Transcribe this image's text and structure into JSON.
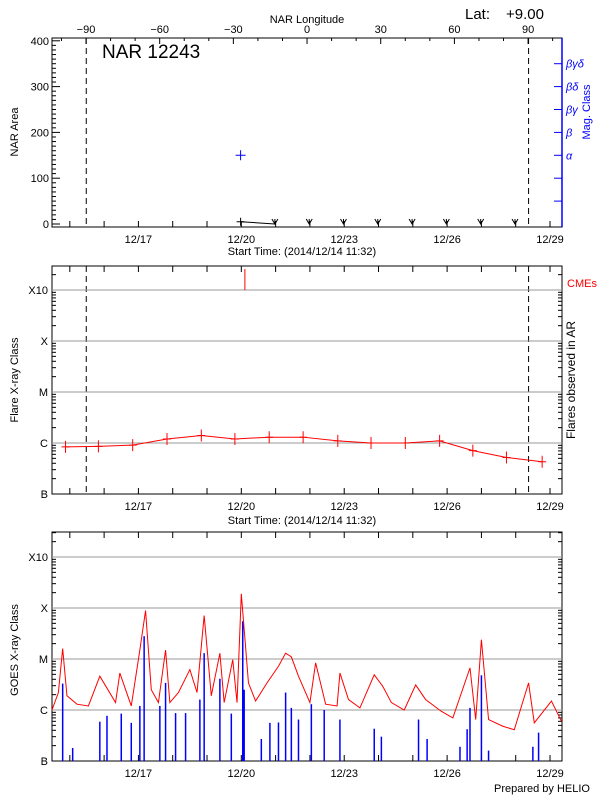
{
  "header": {
    "lat_label": "Lat:",
    "lat_value": "+9.00",
    "region_title": "NAR 12243",
    "credit": "Prepared by HELIO"
  },
  "colors": {
    "flare": "#ff0000",
    "goes_long": "#ff0000",
    "goes_short": "#0000ff",
    "mag_class": "#0000ff",
    "cme": "#ff0000",
    "grid": "#999999",
    "axis": "#000000"
  },
  "chart_data": [
    {
      "id": "nar-area",
      "type": "scatter",
      "xlabel": "Start Time: (2014/12/14 11:32)",
      "ylabel": "NAR Area",
      "y2label": "Mag. Class",
      "top_axis_label": "NAR Longitude",
      "x_range": [
        "12/14 11:32",
        "12/29 08:30"
      ],
      "x_tick_labels": [
        "12/17",
        "12/20",
        "12/23",
        "12/26",
        "12/29"
      ],
      "ylim": [
        0,
        400
      ],
      "y_tick_labels": [
        "0",
        "100",
        "200",
        "300",
        "400"
      ],
      "top_axis_ticks": [
        -90,
        -60,
        -30,
        0,
        30,
        60,
        90
      ],
      "limb_lines": [
        {
          "longitude": -90,
          "time": "12/15 11:30"
        },
        {
          "longitude": 90,
          "time": "12/28 09:00"
        }
      ],
      "mag_class_ticks": [
        "α",
        "β",
        "βγ",
        "βδ",
        "βγδ"
      ],
      "area": [
        {
          "t": "12/19 23:30",
          "v": 5
        },
        {
          "t": "12/20 23:30",
          "v": 0
        },
        {
          "t": "12/21 23:30",
          "v": 0
        },
        {
          "t": "12/22 23:30",
          "v": 0
        },
        {
          "t": "12/23 23:30",
          "v": 0
        },
        {
          "t": "12/24 23:30",
          "v": 0
        },
        {
          "t": "12/25 23:30",
          "v": 0
        },
        {
          "t": "12/26 23:30",
          "v": 0
        },
        {
          "t": "12/27 23:30",
          "v": 0
        }
      ],
      "mag_class": [
        {
          "t": "12/19 23:30",
          "v": "α"
        }
      ]
    },
    {
      "id": "flare-class",
      "type": "line",
      "xlabel": "Start Time: (2014/12/14 11:32)",
      "ylabel": "Flare X-ray Class",
      "y2label": "Flares observed in AR",
      "cme_label": "CMEs",
      "y_scale": "log",
      "ylim": [
        "B1",
        "X30"
      ],
      "y_tick_labels": [
        "B",
        "C",
        "M",
        "X",
        "X10"
      ],
      "grid": true,
      "x_tick_labels": [
        "12/17",
        "12/20",
        "12/23",
        "12/26",
        "12/29"
      ],
      "cmes": [
        "12/20 02:30"
      ],
      "points": [
        {
          "t": "12/14 21:00",
          "v": "B8.4"
        },
        {
          "t": "12/15 20:00",
          "v": "B8.6"
        },
        {
          "t": "12/16 20:00",
          "v": "B9.1"
        },
        {
          "t": "12/17 20:00",
          "v": "C1.2"
        },
        {
          "t": "12/18 20:00",
          "v": "C1.4"
        },
        {
          "t": "12/19 19:30",
          "v": "C1.2"
        },
        {
          "t": "12/20 19:30",
          "v": "C1.3"
        },
        {
          "t": "12/21 19:15",
          "v": "C1.3"
        },
        {
          "t": "12/22 19:30",
          "v": "C1.1"
        },
        {
          "t": "12/23 18:45",
          "v": "C1.0"
        },
        {
          "t": "12/24 18:45",
          "v": "C1.0"
        },
        {
          "t": "12/25 18:45",
          "v": "C1.1"
        },
        {
          "t": "12/26 18:00",
          "v": "B7.1"
        },
        {
          "t": "12/27 17:30",
          "v": "B5.2"
        },
        {
          "t": "12/28 18:30",
          "v": "B4.3"
        }
      ]
    },
    {
      "id": "goes-xray",
      "type": "line",
      "ylabel": "GOES X-ray Class",
      "y_scale": "log",
      "ylim": [
        "B1",
        "X30"
      ],
      "y_tick_labels": [
        "B",
        "C",
        "M",
        "X",
        "X10"
      ],
      "grid": true,
      "x_tick_labels": [
        "12/17",
        "12/20",
        "12/23",
        "12/26",
        "12/29"
      ],
      "long_channel": [
        {
          "t": "12/14 11:32",
          "v": "C1.0"
        },
        {
          "t": "12/14 16:00",
          "v": "C2.2"
        },
        {
          "t": "12/14 19:00",
          "v": "M1.6"
        },
        {
          "t": "12/14 22:00",
          "v": "C1.9"
        },
        {
          "t": "12/15 05:00",
          "v": "C1.3"
        },
        {
          "t": "12/15 13:00",
          "v": "C1.2"
        },
        {
          "t": "12/15 21:00",
          "v": "C4.6"
        },
        {
          "t": "12/16 08:00",
          "v": "C1.4"
        },
        {
          "t": "12/16 11:00",
          "v": "C5.3"
        },
        {
          "t": "12/16 19:00",
          "v": "C1.2"
        },
        {
          "t": "12/17 01:00",
          "v": "M1.5"
        },
        {
          "t": "12/17 05:00",
          "v": "M8.9"
        },
        {
          "t": "12/17 09:00",
          "v": "C2.5"
        },
        {
          "t": "12/17 14:00",
          "v": "C1.4"
        },
        {
          "t": "12/17 19:00",
          "v": "M1.5"
        },
        {
          "t": "12/17 22:00",
          "v": "C1.4"
        },
        {
          "t": "12/18 04:00",
          "v": "C2.2"
        },
        {
          "t": "12/18 12:00",
          "v": "C6.2"
        },
        {
          "t": "12/18 17:00",
          "v": "C2.2"
        },
        {
          "t": "12/18 22:00",
          "v": "M7.1"
        },
        {
          "t": "12/19 03:00",
          "v": "C1.9"
        },
        {
          "t": "12/19 09:00",
          "v": "M1.3"
        },
        {
          "t": "12/19 12:00",
          "v": "C1.4"
        },
        {
          "t": "12/19 18:00",
          "v": "C9.7"
        },
        {
          "t": "12/19 21:00",
          "v": "C1.4"
        },
        {
          "t": "12/20 00:00",
          "v": "X1.9"
        },
        {
          "t": "12/20 05:00",
          "v": "C3.4"
        },
        {
          "t": "12/20 10:00",
          "v": "C1.5"
        },
        {
          "t": "12/20 18:00",
          "v": "C3.4"
        },
        {
          "t": "12/21 02:00",
          "v": "C7.2"
        },
        {
          "t": "12/21 07:00",
          "v": "M1.3"
        },
        {
          "t": "12/21 11:00",
          "v": "M1.1"
        },
        {
          "t": "12/21 16:00",
          "v": "C4.6"
        },
        {
          "t": "12/22 00:00",
          "v": "C1.4"
        },
        {
          "t": "12/22 04:00",
          "v": "C8.4"
        },
        {
          "t": "12/22 11:00",
          "v": "C1.3"
        },
        {
          "t": "12/22 19:00",
          "v": "C1.2"
        },
        {
          "t": "12/22 21:00",
          "v": "C5.3"
        },
        {
          "t": "12/23 03:00",
          "v": "C1.6"
        },
        {
          "t": "12/23 11:00",
          "v": "C1.1"
        },
        {
          "t": "12/23 21:00",
          "v": "C4.9"
        },
        {
          "t": "12/24 03:00",
          "v": "C2.9"
        },
        {
          "t": "12/24 09:00",
          "v": "C1.4"
        },
        {
          "t": "12/24 18:00",
          "v": "C1.0"
        },
        {
          "t": "12/25 02:00",
          "v": "C3.1"
        },
        {
          "t": "12/25 09:00",
          "v": "C1.6"
        },
        {
          "t": "12/25 20:00",
          "v": "B9.4"
        },
        {
          "t": "12/26 04:00",
          "v": "B7.0"
        },
        {
          "t": "12/26 16:00",
          "v": "C6.7"
        },
        {
          "t": "12/26 20:00",
          "v": "B6.5"
        },
        {
          "t": "12/27 00:00",
          "v": "M2.4"
        },
        {
          "t": "12/27 05:00",
          "v": "B6.5"
        },
        {
          "t": "12/27 15:00",
          "v": "B4.8"
        },
        {
          "t": "12/27 23:00",
          "v": "B4.1"
        },
        {
          "t": "12/28 09:00",
          "v": "C3.4"
        },
        {
          "t": "12/28 13:00",
          "v": "B5.6"
        },
        {
          "t": "12/29 01:00",
          "v": "C1.5"
        },
        {
          "t": "12/29 08:00",
          "v": "B6.0"
        }
      ],
      "short_channel": [
        {
          "t": "12/14 19:00",
          "v": "C3.3"
        },
        {
          "t": "12/15 02:00",
          "v": "B1.8"
        },
        {
          "t": "12/15 21:00",
          "v": "B5.9"
        },
        {
          "t": "12/16 02:00",
          "v": "B7.7"
        },
        {
          "t": "12/16 12:00",
          "v": "B8.5"
        },
        {
          "t": "12/16 19:00",
          "v": "B5.6"
        },
        {
          "t": "12/17 01:00",
          "v": "C1.2"
        },
        {
          "t": "12/17 04:00",
          "v": "M2.8"
        },
        {
          "t": "12/17 15:00",
          "v": "C1.2"
        },
        {
          "t": "12/17 19:00",
          "v": "C3.4"
        },
        {
          "t": "12/18 02:00",
          "v": "B8.7"
        },
        {
          "t": "12/18 09:00",
          "v": "B8.7"
        },
        {
          "t": "12/18 19:00",
          "v": "C1.6"
        },
        {
          "t": "12/18 22:00",
          "v": "M1.3"
        },
        {
          "t": "12/19 09:00",
          "v": "C4.1"
        },
        {
          "t": "12/19 17:00",
          "v": "B8.5"
        },
        {
          "t": "12/20 01:00",
          "v": "M5.5"
        },
        {
          "t": "12/20 02:00",
          "v": "C2.5"
        },
        {
          "t": "12/20 14:00",
          "v": "B2.7"
        },
        {
          "t": "12/20 20:00",
          "v": "B5.6"
        },
        {
          "t": "12/21 02:00",
          "v": "B5.7"
        },
        {
          "t": "12/21 07:00",
          "v": "C2.2"
        },
        {
          "t": "12/21 11:00",
          "v": "C1.1"
        },
        {
          "t": "12/21 16:00",
          "v": "B6.5"
        },
        {
          "t": "12/22 01:00",
          "v": "C1.3"
        },
        {
          "t": "12/22 10:00",
          "v": "C1.0"
        },
        {
          "t": "12/22 21:00",
          "v": "B6.5"
        },
        {
          "t": "12/23 21:00",
          "v": "B4.3"
        },
        {
          "t": "12/24 02:00",
          "v": "B3.0"
        },
        {
          "t": "12/25 04:00",
          "v": "B6.5"
        },
        {
          "t": "12/25 10:00",
          "v": "B2.7"
        },
        {
          "t": "12/26 09:00",
          "v": "B1.9"
        },
        {
          "t": "12/26 14:00",
          "v": "B4.2"
        },
        {
          "t": "12/26 16:00",
          "v": "C1.1"
        },
        {
          "t": "12/27 00:00",
          "v": "C4.8"
        },
        {
          "t": "12/27 05:00",
          "v": "B1.6"
        },
        {
          "t": "12/28 12:00",
          "v": "B1.9"
        },
        {
          "t": "12/28 16:00",
          "v": "B3.6"
        }
      ]
    }
  ]
}
